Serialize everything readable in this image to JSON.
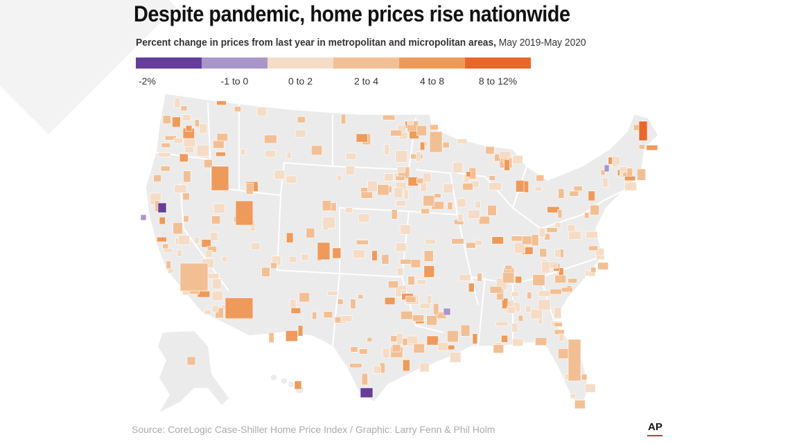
{
  "header": {
    "title": "Despite pandemic, home prices rise nationwide",
    "subtitle_bold": "Percent change in prices from last year in metropolitan and micropolitan areas,",
    "subtitle_period": "May 2019-May 2020"
  },
  "legend": [
    {
      "label": "-2%",
      "color": "#663d99"
    },
    {
      "label": "-1 to 0",
      "color": "#a996c9"
    },
    {
      "label": "0 to 2",
      "color": "#f5dcc6"
    },
    {
      "label": "2 to 4",
      "color": "#f2bf94"
    },
    {
      "label": "4 to 8",
      "color": "#ee9a5b"
    },
    {
      "label": "8 to 12%",
      "color": "#e8662a"
    }
  ],
  "map": {
    "land_color": "#ebebeb",
    "border_color": "#ffffff",
    "regions": [
      "contiguous United States",
      "Alaska",
      "Hawaii"
    ]
  },
  "footer": {
    "source": "Source:  CoreLogic Case-Shiller Home Price Index  /  Graphic: Larry Fenn & Phil Holm",
    "logo": "AP"
  }
}
